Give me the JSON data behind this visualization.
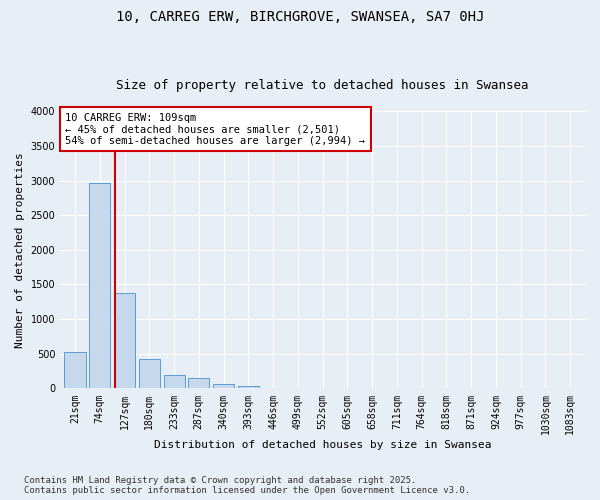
{
  "title_line1": "10, CARREG ERW, BIRCHGROVE, SWANSEA, SA7 0HJ",
  "title_line2": "Size of property relative to detached houses in Swansea",
  "xlabel": "Distribution of detached houses by size in Swansea",
  "ylabel": "Number of detached properties",
  "categories": [
    "21sqm",
    "74sqm",
    "127sqm",
    "180sqm",
    "233sqm",
    "287sqm",
    "340sqm",
    "393sqm",
    "446sqm",
    "499sqm",
    "552sqm",
    "605sqm",
    "658sqm",
    "711sqm",
    "764sqm",
    "818sqm",
    "871sqm",
    "924sqm",
    "977sqm",
    "1030sqm",
    "1083sqm"
  ],
  "values": [
    530,
    2970,
    1380,
    430,
    200,
    145,
    70,
    30,
    5,
    0,
    0,
    0,
    0,
    0,
    0,
    0,
    0,
    0,
    0,
    0,
    0
  ],
  "bar_color": "#c6d9ec",
  "bar_edge_color": "#5b9bd5",
  "vline_x": 1.62,
  "vline_color": "#cc0000",
  "annotation_text": "10 CARREG ERW: 109sqm\n← 45% of detached houses are smaller (2,501)\n54% of semi-detached houses are larger (2,994) →",
  "annotation_box_color": "#ffffff",
  "annotation_box_edge": "#cc0000",
  "ylim": [
    0,
    4000
  ],
  "yticks": [
    0,
    500,
    1000,
    1500,
    2000,
    2500,
    3000,
    3500,
    4000
  ],
  "footer_line1": "Contains HM Land Registry data © Crown copyright and database right 2025.",
  "footer_line2": "Contains public sector information licensed under the Open Government Licence v3.0.",
  "bg_color": "#e8eef5",
  "plot_bg_color": "#e8eef5",
  "title_fontsize": 10,
  "subtitle_fontsize": 9,
  "tick_fontsize": 7,
  "label_fontsize": 8,
  "footer_fontsize": 6.5,
  "annotation_fontsize": 7.5
}
